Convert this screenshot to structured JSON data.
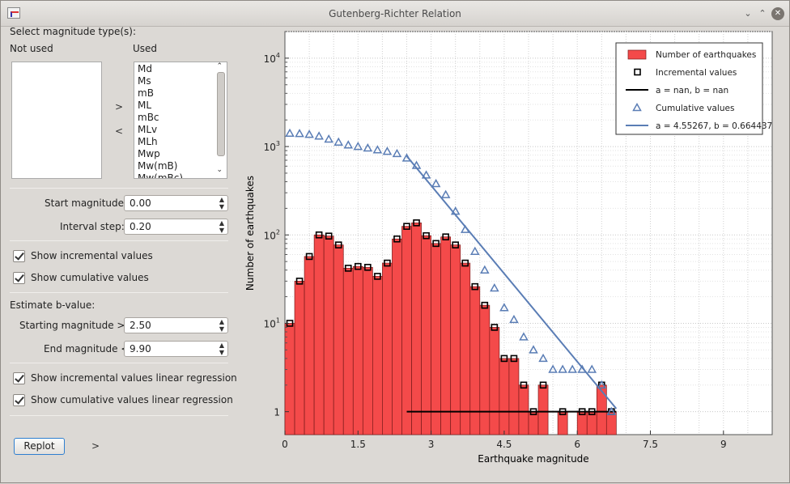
{
  "window": {
    "title": "Gutenberg-Richter Relation"
  },
  "left_panel": {
    "select_label": "Select magnitude type(s):",
    "not_used_label": "Not used",
    "used_label": "Used",
    "used_items": [
      "Md",
      "Ms",
      "mB",
      "ML",
      "mBc",
      "MLv",
      "MLh",
      "Mwp",
      "Mw(mB)",
      "Mw(mBc)"
    ],
    "move_right_arrow": ">",
    "move_left_arrow": "<",
    "start_magnitude_label": "Start magnitude:",
    "start_magnitude_value": "0.00",
    "interval_step_label": "Interval step:",
    "interval_step_value": "0.20",
    "show_incremental_label": "Show incremental values",
    "show_cumulative_label": "Show cumulative values",
    "estimate_label": "Estimate b-value:",
    "starting_magnitude_label": "Starting magnitude >=",
    "starting_magnitude_value": "2.50",
    "end_magnitude_label": "End magnitude <",
    "end_magnitude_value": "9.90",
    "show_incremental_regression_label": "Show incremental values linear regression",
    "show_cumulative_regression_label": "Show cumulative values linear regression",
    "replot_label": "Replot",
    "expand_arrow": ">"
  },
  "chart_data": {
    "type": "bar",
    "xlabel": "Earthquake magnitude",
    "ylabel": "Number of earthquakes",
    "xlim": [
      0,
      10
    ],
    "ylim": [
      0.55,
      20000
    ],
    "log_y": true,
    "grid": true,
    "legend_position": "top-right",
    "x_ticks": [
      "0",
      "1.5",
      "3",
      "4.5",
      "6",
      "7.5",
      "9"
    ],
    "x_tick_values": [
      0,
      1.5,
      3,
      4.5,
      6,
      7.5,
      9
    ],
    "y_ticks": [
      {
        "base": "1",
        "exp": "",
        "value": 1
      },
      {
        "base": "10",
        "exp": "1",
        "value": 10
      },
      {
        "base": "10",
        "exp": "2",
        "value": 100
      },
      {
        "base": "10",
        "exp": "3",
        "value": 1000
      },
      {
        "base": "10",
        "exp": "4",
        "value": 10000
      }
    ],
    "bar_width": 0.2,
    "bins": [
      0.1,
      0.3,
      0.5,
      0.7,
      0.9,
      1.1,
      1.3,
      1.5,
      1.7,
      1.9,
      2.1,
      2.3,
      2.5,
      2.7,
      2.9,
      3.1,
      3.3,
      3.5,
      3.7,
      3.9,
      4.1,
      4.3,
      4.5,
      4.7,
      4.9,
      5.1,
      5.3,
      5.5,
      5.7,
      5.9,
      6.1,
      6.3,
      6.5,
      6.7
    ],
    "incremental": [
      10,
      30,
      57,
      100,
      97,
      77,
      42,
      44,
      43,
      34,
      48,
      90,
      125,
      137,
      98,
      80,
      95,
      77,
      48,
      26,
      16,
      9,
      4,
      4,
      2,
      1,
      2,
      0,
      1,
      0,
      1,
      1,
      2,
      1
    ],
    "cumulative_x": [
      0.1,
      0.3,
      0.5,
      0.7,
      0.9,
      1.1,
      1.3,
      1.5,
      1.7,
      1.9,
      2.1,
      2.3,
      2.5,
      2.7,
      2.9,
      3.1,
      3.3,
      3.5,
      3.7,
      3.9,
      4.1,
      4.3,
      4.5,
      4.7,
      4.9,
      5.1,
      5.3,
      5.5,
      5.7,
      5.9,
      6.1,
      6.3,
      6.5,
      6.7
    ],
    "cumulative": [
      1410,
      1400,
      1370,
      1310,
      1210,
      1120,
      1040,
      1000,
      960,
      915,
      880,
      830,
      740,
      610,
      475,
      380,
      285,
      185,
      115,
      65,
      40,
      25,
      15,
      11,
      7,
      5,
      4,
      3,
      3,
      3,
      3,
      3,
      2,
      1
    ],
    "incremental_fit": {
      "x_from": 2.5,
      "x_to": 6.8,
      "y": 1
    },
    "cumulative_fit": {
      "a": 4.55267,
      "b": 0.664437,
      "x_from": 2.5,
      "x_to": 6.8
    },
    "legend": [
      {
        "label": "Number of earthquakes",
        "kind": "bar"
      },
      {
        "label": "Incremental values",
        "kind": "square"
      },
      {
        "label": "a = nan, b = nan",
        "kind": "black-line"
      },
      {
        "label": "Cumulative values",
        "kind": "triangle"
      },
      {
        "label": "a = 4.55267, b = 0.664437",
        "kind": "blue-line"
      }
    ],
    "colors": {
      "bar": "#f44a4a",
      "bar_edge": "#7a1a1a",
      "cumulative": "#5a7db5",
      "incremental_fit": "#000000"
    }
  }
}
